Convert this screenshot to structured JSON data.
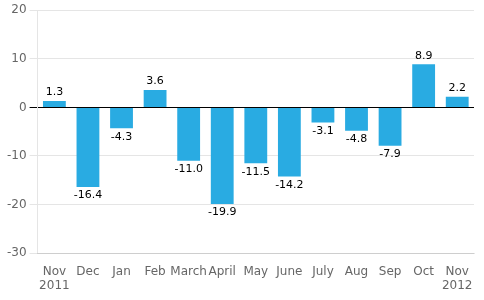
{
  "chart_data": {
    "type": "bar",
    "categories": [
      "Nov\n2011",
      "Dec",
      "Jan",
      "Feb",
      "March",
      "April",
      "May",
      "June",
      "July",
      "Aug",
      "Sep",
      "Oct",
      "Nov\n2012"
    ],
    "values": [
      1.3,
      -16.4,
      -4.3,
      3.6,
      -11.0,
      -19.9,
      -11.5,
      -14.2,
      -3.1,
      -4.8,
      -7.9,
      8.9,
      2.2
    ],
    "value_labels": [
      "1.3",
      "-16.4",
      "-4.3",
      "3.6",
      "-11.0",
      "-19.9",
      "-11.5",
      "-14.2",
      "-3.1",
      "-4.8",
      "-7.9",
      "8.9",
      "2.2"
    ],
    "color": "#29ABE2",
    "ylim": [
      -30,
      20
    ],
    "yticks": [
      -30,
      -20,
      -10,
      0,
      10,
      20
    ],
    "grid": true,
    "data_labels": true
  }
}
